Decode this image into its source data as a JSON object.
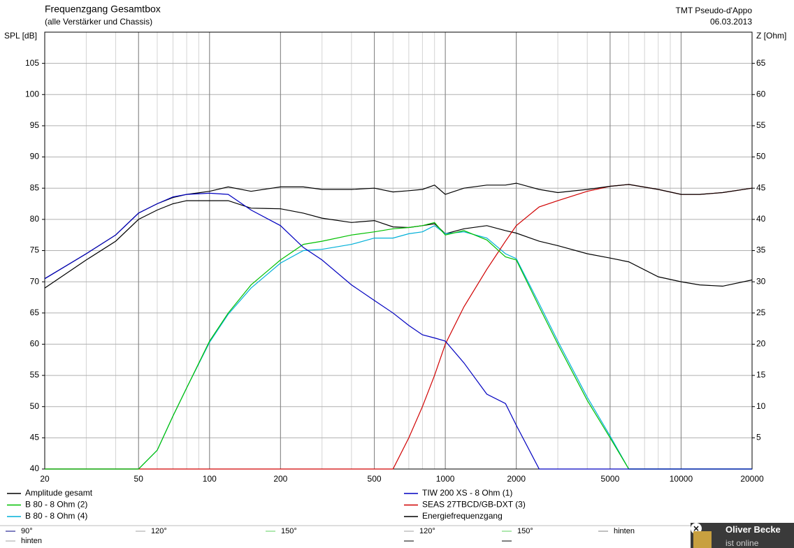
{
  "chart_data": {
    "type": "line",
    "title": "Frequenzgang Gesamtbox",
    "subtitle": "(alle Verstärker und Chassis)",
    "annotations": [
      "TMT Pseudo-d'Appo",
      "06.03.2013"
    ],
    "y_label": "SPL [dB]",
    "y2_label": "Z [Ohm]",
    "x_log": true,
    "grid": true,
    "x": [
      20,
      30,
      40,
      50,
      60,
      70,
      80,
      100,
      120,
      150,
      200,
      250,
      300,
      400,
      500,
      600,
      700,
      800,
      900,
      1000,
      1200,
      1500,
      1800,
      2000,
      2500,
      3000,
      4000,
      5000,
      6000,
      8000,
      10000,
      12000,
      15000,
      20000
    ],
    "xlim": [
      20,
      20000
    ],
    "xticks": [
      20,
      50,
      100,
      200,
      500,
      1000,
      2000,
      5000,
      10000,
      20000
    ],
    "ylim": [
      40,
      110
    ],
    "yticks": [
      40,
      45,
      50,
      55,
      60,
      65,
      70,
      75,
      80,
      85,
      90,
      95,
      100,
      105
    ],
    "y2lim": [
      0,
      70
    ],
    "y2ticks": [
      5,
      10,
      15,
      20,
      25,
      30,
      35,
      40,
      45,
      50,
      55,
      60,
      65
    ],
    "series": [
      {
        "name": "Amplitude gesamt",
        "color": "#000000",
        "values": [
          70.5,
          74.5,
          77.5,
          81,
          82.5,
          83.5,
          84,
          84.5,
          85.2,
          84.5,
          85.2,
          85.2,
          84.8,
          84.8,
          85,
          84.4,
          84.6,
          84.8,
          85.5,
          84,
          85,
          85.5,
          85.5,
          85.8,
          84.8,
          84.3,
          84.8,
          85.3,
          85.6,
          84.8,
          84,
          84,
          84.3,
          85
        ]
      },
      {
        "name": "TIW 200 XS - 8 Ohm (1)",
        "color": "#0000c0",
        "values": [
          70.5,
          74.5,
          77.5,
          81,
          82.5,
          83.6,
          84,
          84.2,
          84,
          81.5,
          79,
          75.5,
          73.5,
          69.5,
          67,
          65,
          63,
          61.5,
          61,
          60.5,
          57,
          52,
          50.5,
          47,
          40,
          40,
          40,
          40,
          40,
          40,
          40,
          40,
          40,
          40
        ]
      },
      {
        "name": "B 80 - 8 Ohm (2)",
        "color": "#00c000",
        "values": [
          40,
          40,
          40,
          40,
          43,
          48.5,
          53,
          60.5,
          65,
          69.5,
          73.5,
          76,
          76.5,
          77.5,
          78,
          78.5,
          78.7,
          79,
          79.5,
          77.5,
          78.2,
          76.7,
          74,
          73.5,
          66,
          60,
          51,
          45,
          40,
          40,
          40,
          40,
          40,
          40
        ]
      },
      {
        "name": "SEAS 27TBCD/GB-DXT (3)",
        "color": "#d00000",
        "values": [
          40,
          40,
          40,
          40,
          40,
          40,
          40,
          40,
          40,
          40,
          40,
          40,
          40,
          40,
          40,
          40,
          45,
          50,
          55,
          60,
          66,
          72,
          76.5,
          79,
          82,
          83,
          84.5,
          85.3,
          85.6,
          84.8,
          84,
          84,
          84.3,
          85
        ]
      },
      {
        "name": "B 80 - 8 Ohm (4)",
        "color": "#00b0d8",
        "values": [
          40,
          40,
          40,
          40,
          43,
          48.5,
          53,
          60.3,
          64.8,
          69,
          73,
          75,
          75.2,
          76,
          77,
          77,
          77.7,
          78,
          79,
          77.7,
          78,
          77,
          74.5,
          73.7,
          66.5,
          60.5,
          51.5,
          45.3,
          40,
          40,
          40,
          40,
          40,
          40
        ]
      },
      {
        "name": "Energiefrequenzgang",
        "color": "#000000",
        "values": [
          69,
          73.5,
          76.5,
          80,
          81.5,
          82.5,
          83,
          83,
          83,
          81.8,
          81.7,
          81,
          80.2,
          79.5,
          79.8,
          78.8,
          78.7,
          79,
          79.3,
          77.7,
          78.5,
          79,
          78.2,
          77.8,
          76.5,
          75.8,
          74.5,
          73.8,
          73.2,
          70.8,
          70,
          69.5,
          69.3,
          70.3
        ]
      }
    ]
  },
  "angle_legend": [
    {
      "label": "90°",
      "color": "#000080"
    },
    {
      "label": "120°",
      "color": "#a0a0a0"
    },
    {
      "label": "150°",
      "color": "#60d060"
    },
    {
      "label": "120°",
      "color": "#a0a0a0"
    },
    {
      "label": "150°",
      "color": "#60d060"
    },
    {
      "label": "hinten",
      "color": "#808080"
    },
    {
      "label": "hinten",
      "color": "#a0a0a0"
    }
  ],
  "notification": {
    "name": "Oliver Becke",
    "status": "ist online"
  }
}
